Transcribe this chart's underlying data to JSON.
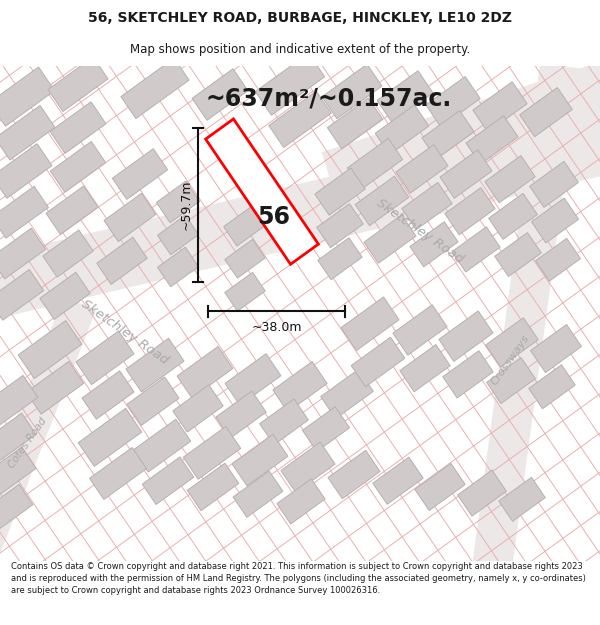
{
  "title_line1": "56, SKETCHLEY ROAD, BURBAGE, HINCKLEY, LE10 2DZ",
  "title_line2": "Map shows position and indicative extent of the property.",
  "area_text": "~637m²/~0.157ac.",
  "label_56": "56",
  "dim_width": "~38.0m",
  "dim_height": "~59.7m",
  "road_label1": "Sketchley Road",
  "road_label2": "Sketchley Road",
  "road_label3": "Crossways",
  "road_label4": "Cotes Road",
  "footer_text": "Contains OS data © Crown copyright and database right 2021. This information is subject to Crown copyright and database rights 2023 and is reproduced with the permission of HM Land Registry. The polygons (including the associated geometry, namely x, y co-ordinates) are subject to Crown copyright and database rights 2023 Ordnance Survey 100026316.",
  "bg_color": "#ffffff",
  "map_bg": "#ffffff",
  "road_line_color": "#e8b0b0",
  "road_band_color": "#e8e0e0",
  "building_fill": "#d0caca",
  "building_stroke": "#b8b0b0",
  "highlight_color": "#ff0000",
  "highlight_fill": "#ffffff",
  "text_color": "#1a1a1a",
  "road_text_color": "#aaaaaa",
  "dim_line_color": "#111111"
}
